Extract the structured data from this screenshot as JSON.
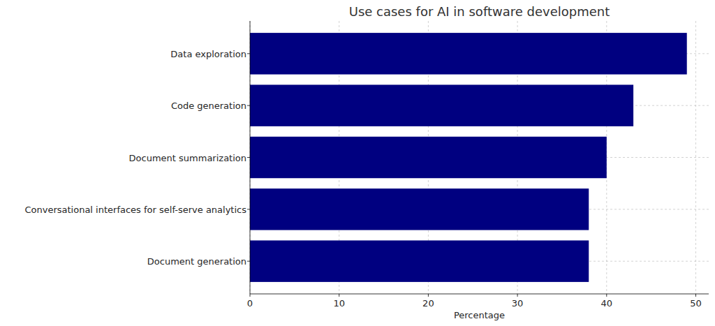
{
  "chart_data": {
    "type": "bar",
    "orientation": "horizontal",
    "title": "Use cases for AI in software development",
    "x_label": "Percentage",
    "categories": [
      "Data exploration",
      "Code generation",
      "Document summarization",
      "Conversational interfaces for self-serve analytics",
      "Document generation"
    ],
    "values": [
      49,
      43,
      40,
      38,
      38
    ],
    "color": "#000080",
    "xlim": [
      0,
      51.45
    ],
    "xticks": [
      0,
      10,
      20,
      30,
      40,
      50
    ],
    "grid": true
  }
}
